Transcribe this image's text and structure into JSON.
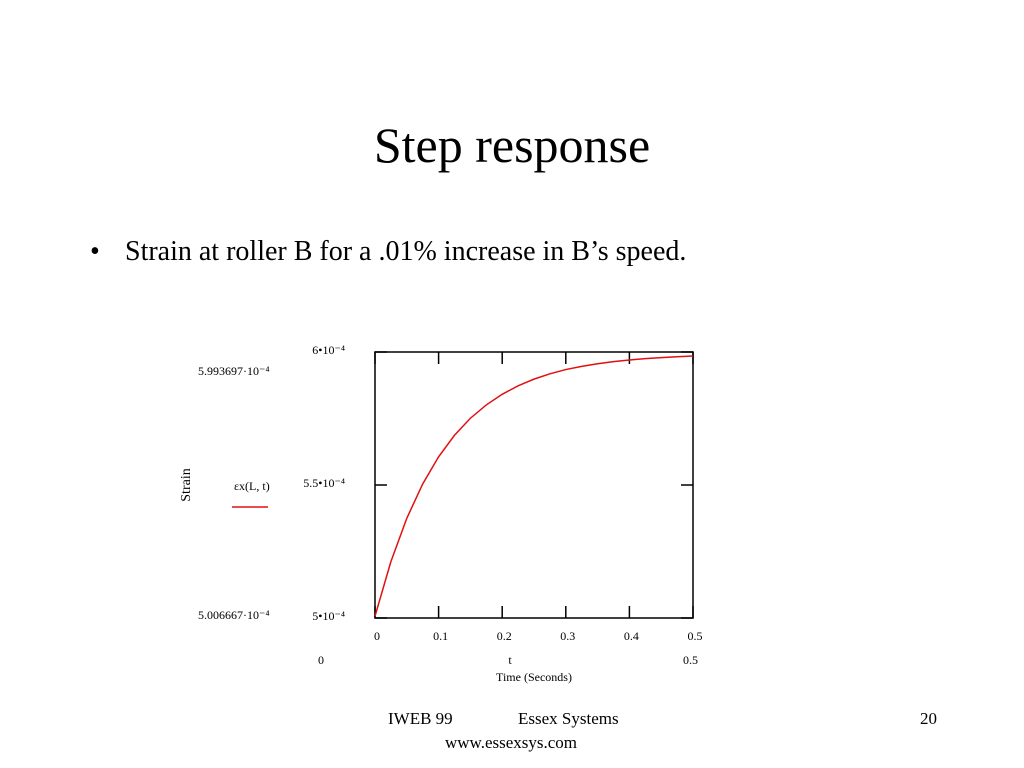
{
  "slide": {
    "title": "Step response",
    "bullet": "Strain at roller B for a .01% increase in B’s speed.",
    "footer_left": "IWEB 99",
    "footer_center": "Essex Systems",
    "footer_url": "www.essexsys.com",
    "page_number": "20"
  },
  "chart_data": {
    "type": "line",
    "x_label": "Time (Seconds)",
    "x_variable": "t",
    "y_label": "Strain",
    "annotations": [
      "5.993697·10⁻⁴",
      "5.006667·10⁻⁴",
      "0",
      "0.5"
    ],
    "x": [
      0,
      0.025,
      0.05,
      0.075,
      0.1,
      0.125,
      0.15,
      0.175,
      0.2,
      0.225,
      0.25,
      0.275,
      0.3,
      0.325,
      0.35,
      0.375,
      0.4,
      0.425,
      0.45,
      0.475,
      0.5
    ],
    "series": [
      {
        "name": "εx(L, t)",
        "color": "#e01010",
        "values": [
          0.0005007,
          0.0005212,
          0.0005375,
          0.0005504,
          0.0005606,
          0.0005687,
          0.0005751,
          0.0005801,
          0.0005841,
          0.0005873,
          0.0005898,
          0.0005918,
          0.0005934,
          0.0005946,
          0.0005956,
          0.0005964,
          0.000597,
          0.0005975,
          0.0005979,
          0.0005982,
          0.0005985
        ]
      }
    ],
    "xlim": [
      0,
      0.5
    ],
    "xticks": [
      0,
      0.1,
      0.2,
      0.3,
      0.4,
      0.5
    ],
    "ylim": [
      0.0005,
      0.0006
    ],
    "yticks": [
      {
        "value": 0.0005,
        "label": "5•10⁻⁴"
      },
      {
        "value": 0.00055,
        "label": "5.5•10⁻⁴"
      },
      {
        "value": 0.0006,
        "label": "6•10⁻⁴"
      }
    ],
    "grid": false
  }
}
